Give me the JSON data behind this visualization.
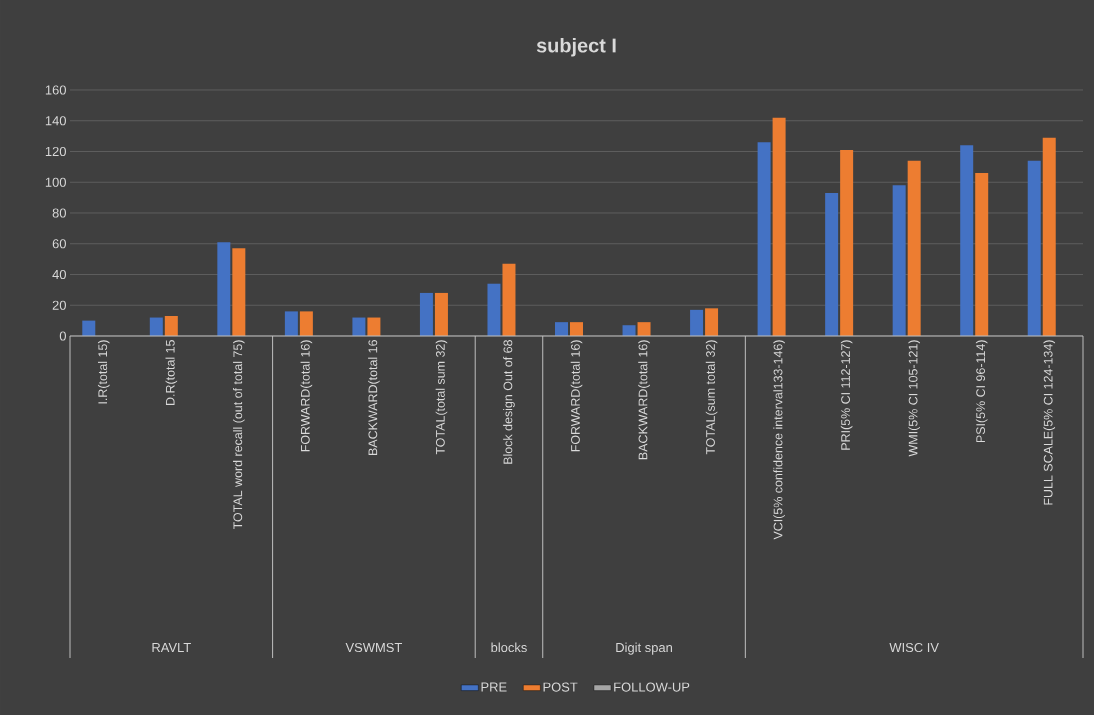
{
  "chart_data": {
    "type": "bar",
    "title": "subject I",
    "categories": [
      "I.R(total 15)",
      "D.R(total 15",
      "TOTAL word recall (out of total 75)",
      "FORWARD(total  16)",
      "BACKWARD(total 16",
      "TOTAL(total sum 32)",
      "Block design Out of 68",
      "FORWARD(total  16)",
      "BACKWARD(total 16)",
      "TOTAL(sum total 32)",
      "VCI(5% confidence interval133-146)",
      "PRI(5% CI 112-127)",
      "WMI(5% CI 105-121)",
      "PSI(5% CI 96-114)",
      "FULL SCALE(5% CI 124-134)"
    ],
    "series": [
      {
        "name": "PRE",
        "color": "#4472c4",
        "values": [
          10,
          12,
          61,
          16,
          12,
          28,
          34,
          9,
          7,
          17,
          126,
          93,
          98,
          124,
          114
        ]
      },
      {
        "name": "POST",
        "color": "#ed7d31",
        "values": [
          null,
          13,
          57,
          16,
          12,
          28,
          47,
          9,
          9,
          18,
          142,
          121,
          114,
          106,
          129
        ]
      },
      {
        "name": "FOLLOW-UP",
        "color": "#a5a5a5",
        "values": [
          null,
          null,
          null,
          null,
          null,
          null,
          null,
          null,
          null,
          null,
          null,
          null,
          null,
          null,
          null
        ]
      }
    ],
    "annotations": [
      "RAVLT",
      "VSWMST",
      "blocks",
      "Digit span",
      "WISC IV"
    ],
    "ylim": [
      0,
      160
    ],
    "yticks": [
      0,
      20,
      40,
      60,
      80,
      100,
      120,
      140,
      160
    ],
    "grid": "y",
    "legend": "bottom"
  }
}
